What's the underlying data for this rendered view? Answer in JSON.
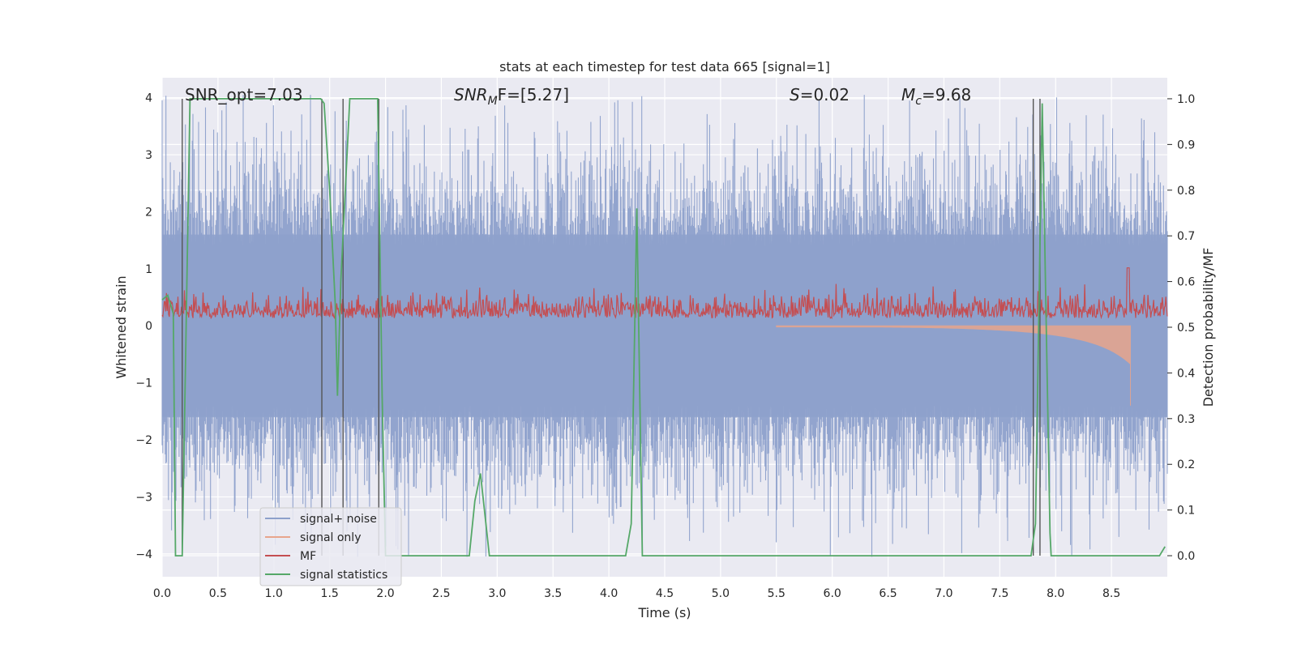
{
  "chart_data": {
    "type": "line",
    "title": "stats at each timestep for test data 665 [signal=1]",
    "xlabel": "Time (s)",
    "ylabel": "Whitened strain",
    "y2label": "Detection probability/MF",
    "xlim": [
      0,
      9.0
    ],
    "ylim": [
      -4.4,
      4.35
    ],
    "y2lim": [
      -0.046,
      1.046
    ],
    "xticks": [
      "0.0",
      "0.5",
      "1.0",
      "1.5",
      "2.0",
      "2.5",
      "3.0",
      "3.5",
      "4.0",
      "4.5",
      "5.0",
      "5.5",
      "6.0",
      "6.5",
      "7.0",
      "7.5",
      "8.0",
      "8.5"
    ],
    "yticks": [
      "4",
      "3",
      "2",
      "1",
      "0",
      "−1",
      "−2",
      "−3",
      "−4"
    ],
    "y2ticks": [
      "1.0",
      "0.9",
      "0.8",
      "0.7",
      "0.6",
      "0.5",
      "0.4",
      "0.3",
      "0.2",
      "0.1",
      "0.0"
    ],
    "grid": true,
    "legend_position": "lower-left",
    "annotations": {
      "snr_opt": "SNR_opt=7.03",
      "snr_mf_prefix": "SNR",
      "snr_mf_sub": "M",
      "snr_mf_suffix": "F=[5.27]",
      "s_prefix": "S",
      "s_value": "=0.02",
      "mc_prefix": "M",
      "mc_sub": "c",
      "mc_value": "=9.68"
    },
    "series": [
      {
        "name": "signal+ noise",
        "color": "#8da0cb",
        "axis": "left",
        "style": "dense-noise",
        "approx_range": [
          -4.0,
          4.0
        ]
      },
      {
        "name": "signal only",
        "color": "#e8a58c",
        "axis": "left",
        "style": "chirp",
        "start": 5.5,
        "end": 8.67,
        "peak_amplitude": -1.4
      },
      {
        "name": "MF",
        "color": "#c44e52",
        "axis": "right",
        "style": "noisy",
        "baseline": 0.5,
        "noise_amp": 0.04,
        "peak_at": 8.65,
        "peak_value": 0.63
      },
      {
        "name": "signal statistics",
        "color": "#55a868",
        "axis": "right",
        "points": [
          [
            0.0,
            0.56
          ],
          [
            0.05,
            0.57
          ],
          [
            0.1,
            0.53
          ],
          [
            0.12,
            0.0
          ],
          [
            0.18,
            0.0
          ],
          [
            0.25,
            1.0
          ],
          [
            0.4,
            1.0
          ],
          [
            1.42,
            1.0
          ],
          [
            1.45,
            0.99
          ],
          [
            1.5,
            0.8
          ],
          [
            1.55,
            0.55
          ],
          [
            1.57,
            0.35
          ],
          [
            1.6,
            0.6
          ],
          [
            1.68,
            1.0
          ],
          [
            1.93,
            1.0
          ],
          [
            1.97,
            0.35
          ],
          [
            2.0,
            0.0
          ],
          [
            2.75,
            0.0
          ],
          [
            2.8,
            0.12
          ],
          [
            2.85,
            0.18
          ],
          [
            2.93,
            0.0
          ],
          [
            4.15,
            0.0
          ],
          [
            4.2,
            0.07
          ],
          [
            4.25,
            0.76
          ],
          [
            4.3,
            0.0
          ],
          [
            7.78,
            0.0
          ],
          [
            7.82,
            0.07
          ],
          [
            7.88,
            0.99
          ],
          [
            7.95,
            0.05
          ],
          [
            7.96,
            0.0
          ],
          [
            8.93,
            0.0
          ],
          [
            8.98,
            0.02
          ]
        ]
      }
    ],
    "vertical_lines": [
      0.18,
      1.43,
      1.62,
      1.94,
      7.8,
      7.86
    ]
  }
}
